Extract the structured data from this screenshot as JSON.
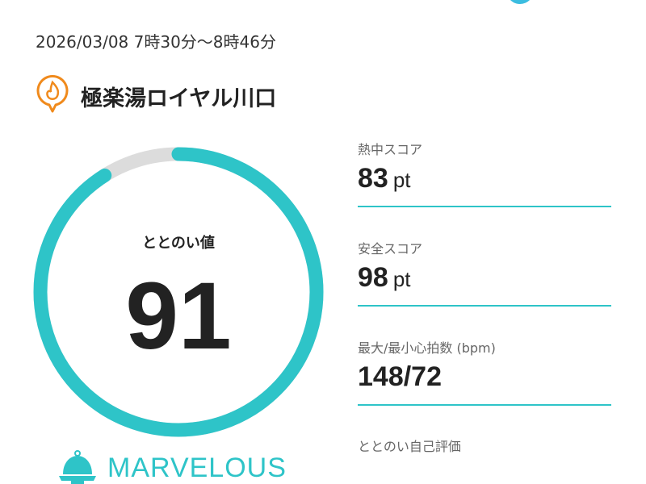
{
  "session": {
    "datetime": "2026/03/08 7時30分〜8時46分"
  },
  "location": {
    "name": "極楽湯ロイヤル川口",
    "icon": "sauna-flame-pin-icon"
  },
  "gauge": {
    "label": "ととのい値",
    "value": "91",
    "percent": 91,
    "color": "#2ec4c8",
    "track_color": "#dcdcdc"
  },
  "rank": {
    "label": "MARVELOUS",
    "icon": "sauna-hat-icon",
    "color": "#2ec4c8"
  },
  "stats": [
    {
      "label": "熱中スコア",
      "value": "83",
      "unit": "pt"
    },
    {
      "label": "安全スコア",
      "value": "98",
      "unit": "pt"
    },
    {
      "label": "最大/最小心拍数 (bpm)",
      "value": "148/72",
      "unit": ""
    },
    {
      "label": "ととのい自己評価",
      "value": "",
      "unit": ""
    }
  ]
}
